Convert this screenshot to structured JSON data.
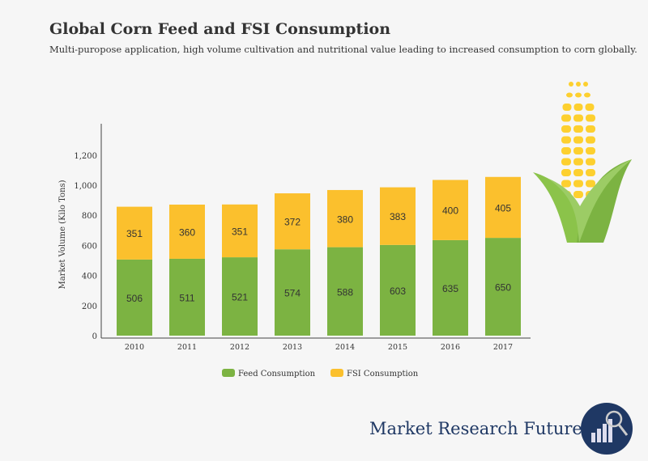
{
  "chart_data": {
    "type": "bar",
    "stacked": true,
    "title": "Global Corn Feed and FSI Consumption",
    "subtitle": "Multi-puropose application, high volume cultivation and nutritional value leading to increased consumption to corn globally.",
    "xlabel": "",
    "ylabel": "Market Volume (Kilo Tons)",
    "categories": [
      "2010",
      "2011",
      "2012",
      "2013",
      "2014",
      "2015",
      "2016",
      "2017"
    ],
    "series": [
      {
        "name": "Feed Consumption",
        "color": "#7cb342",
        "values": [
          506,
          511,
          521,
          574,
          588,
          603,
          635,
          650
        ]
      },
      {
        "name": "FSI Consumption",
        "color": "#fbc02d",
        "values": [
          351,
          360,
          351,
          372,
          380,
          383,
          400,
          405
        ]
      }
    ],
    "ylim": [
      0,
      1400
    ],
    "yticks": [
      0,
      200,
      400,
      600,
      800,
      1000,
      1200
    ],
    "ytick_labels": [
      "0",
      "200",
      "400",
      "600",
      "800",
      "1,000",
      "1,200"
    ],
    "grid": false,
    "legend": "bottom",
    "data_labels": true
  },
  "brand": {
    "name": "Market Research Future",
    "logo_text": "MARKET RESEARCH FUTURE",
    "color": "#1f3864"
  }
}
